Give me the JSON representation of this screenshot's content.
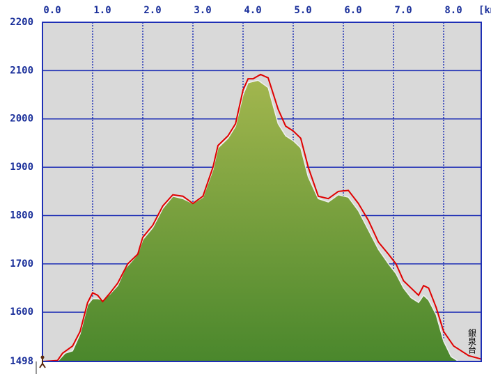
{
  "chart_data": {
    "type": "elevation-profile",
    "x_unit_label": "[km]",
    "annotation": "銀泉台",
    "xlim": [
      0,
      8.75
    ],
    "xticks": [
      {
        "value": 0,
        "label": "0.0"
      },
      {
        "value": 1,
        "label": "1.0"
      },
      {
        "value": 2,
        "label": "2.0"
      },
      {
        "value": 3,
        "label": "3.0"
      },
      {
        "value": 4,
        "label": "4.0"
      },
      {
        "value": 5,
        "label": "5.0"
      },
      {
        "value": 6,
        "label": "6.0"
      },
      {
        "value": 7,
        "label": "7.0"
      },
      {
        "value": 8,
        "label": "8.0"
      }
    ],
    "ylim": [
      1498,
      2200
    ],
    "yticks": [
      1498,
      1600,
      1700,
      1800,
      1900,
      2000,
      2100,
      2200
    ],
    "grid": true,
    "series": [
      {
        "kind": "area",
        "color": "#6f9a3a",
        "x": [
          0.3,
          0.45,
          0.6,
          0.75,
          0.9,
          1.0,
          1.1,
          1.2,
          1.35,
          1.5,
          1.65,
          1.9,
          2.0,
          2.2,
          2.4,
          2.6,
          2.8,
          3.0,
          3.2,
          3.4,
          3.5,
          3.7,
          3.85,
          4.0,
          4.1,
          4.3,
          4.5,
          4.7,
          4.85,
          5.0,
          5.15,
          5.3,
          5.5,
          5.7,
          5.9,
          6.1,
          6.3,
          6.5,
          6.7,
          6.9,
          7.05,
          7.2,
          7.35,
          7.5,
          7.6,
          7.7,
          7.85,
          8.0,
          8.15,
          8.3
        ],
        "values": [
          1498,
          1515,
          1520,
          1555,
          1615,
          1628,
          1628,
          1625,
          1638,
          1655,
          1690,
          1720,
          1750,
          1775,
          1815,
          1840,
          1835,
          1825,
          1838,
          1895,
          1940,
          1960,
          1985,
          2050,
          2075,
          2080,
          2065,
          1990,
          1965,
          1955,
          1940,
          1880,
          1835,
          1828,
          1843,
          1838,
          1810,
          1770,
          1730,
          1700,
          1680,
          1650,
          1630,
          1620,
          1635,
          1625,
          1595,
          1540,
          1508,
          1498
        ]
      },
      {
        "kind": "line",
        "color": "#e00000",
        "x": [
          0.0,
          0.3,
          0.4,
          0.6,
          0.75,
          0.9,
          1.0,
          1.1,
          1.2,
          1.35,
          1.5,
          1.6,
          1.7,
          1.9,
          2.0,
          2.2,
          2.4,
          2.6,
          2.8,
          3.0,
          3.2,
          3.4,
          3.5,
          3.7,
          3.85,
          4.0,
          4.1,
          4.2,
          4.35,
          4.5,
          4.7,
          4.85,
          5.0,
          5.15,
          5.3,
          5.5,
          5.7,
          5.9,
          6.1,
          6.3,
          6.5,
          6.7,
          6.9,
          7.05,
          7.2,
          7.35,
          7.5,
          7.6,
          7.7,
          7.85,
          8.0,
          8.2,
          8.5,
          8.75
        ],
        "values": [
          1498,
          1500,
          1515,
          1530,
          1560,
          1620,
          1640,
          1635,
          1622,
          1640,
          1660,
          1680,
          1700,
          1720,
          1755,
          1780,
          1820,
          1843,
          1840,
          1825,
          1840,
          1900,
          1945,
          1965,
          1990,
          2060,
          2083,
          2083,
          2092,
          2085,
          2020,
          1985,
          1975,
          1960,
          1900,
          1840,
          1835,
          1850,
          1852,
          1825,
          1790,
          1745,
          1720,
          1700,
          1665,
          1650,
          1635,
          1655,
          1650,
          1610,
          1560,
          1530,
          1510,
          1503
        ]
      }
    ]
  }
}
